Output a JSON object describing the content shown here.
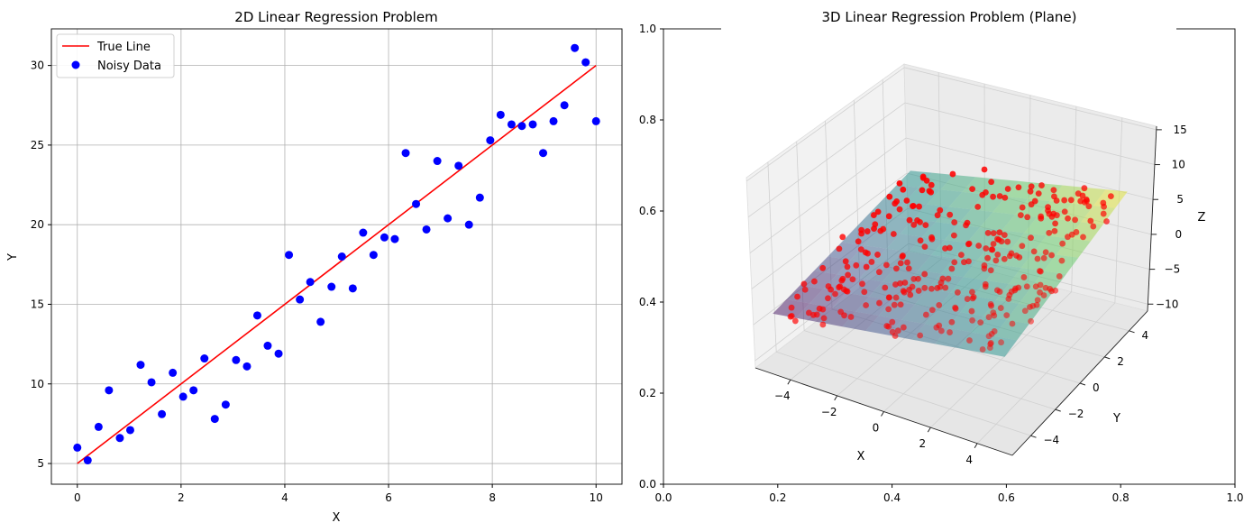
{
  "chart_data": [
    {
      "type": "scatter",
      "title": "2D Linear Regression Problem",
      "xlabel": "X",
      "ylabel": "Y",
      "xlim": [
        -0.5,
        10.5
      ],
      "ylim": [
        3.7,
        32.3
      ],
      "xticks": [
        "0",
        "2",
        "4",
        "6",
        "8",
        "10"
      ],
      "yticks": [
        "5",
        "10",
        "15",
        "20",
        "25",
        "30"
      ],
      "grid": true,
      "legend_position": "top-left",
      "series": [
        {
          "name": "True Line",
          "kind": "line",
          "color": "#ff0000",
          "x": [
            0,
            10
          ],
          "y": [
            5,
            30
          ]
        },
        {
          "name": "Noisy Data",
          "kind": "scatter",
          "color": "#0000ff",
          "x": [
            0,
            0.2,
            0.41,
            0.61,
            0.82,
            1.02,
            1.22,
            1.43,
            1.63,
            1.84,
            2.04,
            2.24,
            2.45,
            2.65,
            2.86,
            3.06,
            3.27,
            3.47,
            3.67,
            3.88,
            4.08,
            4.29,
            4.49,
            4.69,
            4.9,
            5.1,
            5.31,
            5.51,
            5.71,
            5.92,
            6.12,
            6.33,
            6.53,
            6.73,
            6.94,
            7.14,
            7.35,
            7.55,
            7.76,
            7.96,
            8.16,
            8.37,
            8.57,
            8.78,
            8.98,
            9.18,
            9.39,
            9.59,
            9.8,
            10
          ],
          "y": [
            6.0,
            5.2,
            7.3,
            9.6,
            6.6,
            7.1,
            11.2,
            10.1,
            8.1,
            10.7,
            9.2,
            9.6,
            11.6,
            7.8,
            8.7,
            11.5,
            11.1,
            14.3,
            12.4,
            11.9,
            18.1,
            15.3,
            16.4,
            13.9,
            16.1,
            18.0,
            16.0,
            19.5,
            18.1,
            19.2,
            19.1,
            24.5,
            21.3,
            19.7,
            24.0,
            20.4,
            23.7,
            20.0,
            21.7,
            25.3,
            26.9,
            26.3,
            26.2,
            26.3,
            24.5,
            26.5,
            27.5,
            31.1,
            30.2,
            26.5
          ]
        }
      ]
    },
    {
      "type": "scatter",
      "title": "3D Linear Regression Problem (Plane)",
      "xlabel": "X",
      "ylabel": "Y",
      "zlabel": "Z",
      "xlim": [
        -5,
        5
      ],
      "ylim": [
        -5,
        5
      ],
      "zlim": [
        -10,
        15
      ],
      "xticks": [
        "−4",
        "−2",
        "0",
        "2",
        "4"
      ],
      "yticks": [
        "−4",
        "−2",
        "0",
        "2",
        "4"
      ],
      "zticks": [
        "−10",
        "−5",
        "0",
        "5",
        "10",
        "15"
      ],
      "background_axes": {
        "xticks": [
          "0.0",
          "0.2",
          "0.4",
          "0.6",
          "0.8",
          "1.0"
        ],
        "yticks": [
          "0.0",
          "0.2",
          "0.4",
          "0.6",
          "0.8",
          "1.0"
        ]
      },
      "plane": {
        "z_equals": "0.5*x + 0.5*y + 2",
        "colormap": "viridis",
        "alpha": 0.5
      },
      "points": {
        "color": "#ff0000",
        "count": 300,
        "distribution": "uniform x,y in [-5,5], z = plane + noise"
      }
    }
  ]
}
